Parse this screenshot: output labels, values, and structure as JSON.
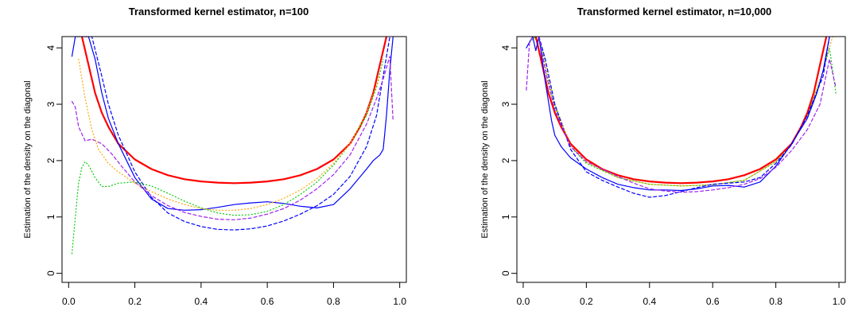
{
  "chart_data": [
    {
      "type": "line",
      "title": "Transformed kernel estimator, n=100",
      "xlabel": "",
      "ylabel": "Estimation of the density on the diagonal",
      "xlim": [
        -0.02,
        1.02
      ],
      "ylim": [
        -0.16,
        4.2
      ],
      "xticks": [
        {
          "value": 0.0,
          "label": "0.0"
        },
        {
          "value": 0.2,
          "label": "0.2"
        },
        {
          "value": 0.4,
          "label": "0.4"
        },
        {
          "value": 0.6,
          "label": "0.6"
        },
        {
          "value": 0.8,
          "label": "0.8"
        },
        {
          "value": 1.0,
          "label": "1.0"
        }
      ],
      "yticks": [
        {
          "value": 0,
          "label": "0"
        },
        {
          "value": 1,
          "label": "1"
        },
        {
          "value": 2,
          "label": "2"
        },
        {
          "value": 3,
          "label": "3"
        },
        {
          "value": 4,
          "label": "4"
        }
      ],
      "grid": false,
      "series": [
        {
          "color": "#ff0000",
          "dash": "solid",
          "width": 2.2,
          "x": [
            0.04,
            0.06,
            0.08,
            0.1,
            0.12,
            0.15,
            0.2,
            0.25,
            0.3,
            0.35,
            0.4,
            0.45,
            0.5,
            0.55,
            0.6,
            0.65,
            0.7,
            0.75,
            0.8,
            0.85,
            0.88,
            0.9,
            0.92,
            0.94,
            0.96
          ],
          "y": [
            4.2,
            3.7,
            3.2,
            2.85,
            2.6,
            2.3,
            2.02,
            1.85,
            1.74,
            1.67,
            1.63,
            1.61,
            1.6,
            1.61,
            1.63,
            1.67,
            1.74,
            1.85,
            2.02,
            2.3,
            2.6,
            2.85,
            3.2,
            3.7,
            4.2
          ]
        },
        {
          "color": "#0000ff",
          "dash": "solid",
          "width": 1.2,
          "x": [
            0.01,
            0.02,
            0.03,
            0.06,
            0.08,
            0.1,
            0.12,
            0.15,
            0.2,
            0.25,
            0.3,
            0.35,
            0.4,
            0.45,
            0.5,
            0.55,
            0.6,
            0.65,
            0.7,
            0.75,
            0.8,
            0.85,
            0.9,
            0.92,
            0.94,
            0.95,
            0.96,
            0.97,
            0.98
          ],
          "y": [
            3.85,
            4.2,
            4.2,
            4.2,
            3.8,
            3.2,
            2.75,
            2.3,
            1.7,
            1.32,
            1.15,
            1.12,
            1.13,
            1.17,
            1.22,
            1.25,
            1.27,
            1.24,
            1.19,
            1.16,
            1.22,
            1.5,
            1.85,
            2.0,
            2.1,
            2.2,
            2.8,
            3.6,
            4.2
          ]
        },
        {
          "color": "#0000ff",
          "dash": "4,3",
          "width": 1.2,
          "x": [
            0.05,
            0.07,
            0.1,
            0.12,
            0.15,
            0.2,
            0.25,
            0.3,
            0.35,
            0.4,
            0.45,
            0.5,
            0.55,
            0.6,
            0.65,
            0.7,
            0.75,
            0.8,
            0.85,
            0.9,
            0.93,
            0.95,
            0.97
          ],
          "y": [
            4.2,
            4.2,
            3.5,
            3.0,
            2.45,
            1.8,
            1.35,
            1.07,
            0.92,
            0.83,
            0.78,
            0.77,
            0.79,
            0.84,
            0.93,
            1.05,
            1.2,
            1.4,
            1.72,
            2.25,
            2.8,
            3.5,
            4.2
          ]
        },
        {
          "color": "#a020f0",
          "dash": "4,3",
          "width": 1.2,
          "x": [
            0.01,
            0.02,
            0.03,
            0.05,
            0.07,
            0.1,
            0.13,
            0.16,
            0.2,
            0.25,
            0.3,
            0.35,
            0.4,
            0.45,
            0.5,
            0.55,
            0.6,
            0.65,
            0.7,
            0.75,
            0.8,
            0.85,
            0.9,
            0.93,
            0.95,
            0.97,
            0.98
          ],
          "y": [
            3.05,
            2.95,
            2.6,
            2.35,
            2.38,
            2.3,
            2.12,
            1.9,
            1.62,
            1.38,
            1.2,
            1.08,
            1.01,
            0.96,
            0.95,
            0.98,
            1.05,
            1.15,
            1.3,
            1.5,
            1.75,
            2.1,
            2.65,
            3.1,
            3.45,
            3.85,
            2.7
          ]
        },
        {
          "color": "#00cc00",
          "dash": "1,3",
          "width": 1.2,
          "x": [
            0.01,
            0.02,
            0.03,
            0.04,
            0.05,
            0.06,
            0.08,
            0.1,
            0.12,
            0.15,
            0.2,
            0.25,
            0.3,
            0.35,
            0.4,
            0.45,
            0.5,
            0.55,
            0.6,
            0.65,
            0.7,
            0.75,
            0.8,
            0.85,
            0.9,
            0.93,
            0.95
          ],
          "y": [
            0.35,
            1.0,
            1.6,
            1.88,
            1.98,
            1.92,
            1.7,
            1.54,
            1.54,
            1.6,
            1.62,
            1.55,
            1.42,
            1.28,
            1.16,
            1.07,
            1.03,
            1.04,
            1.1,
            1.22,
            1.4,
            1.62,
            1.92,
            2.3,
            2.8,
            3.3,
            3.8
          ]
        },
        {
          "color": "#ffa500",
          "dash": "1,3",
          "width": 1.2,
          "x": [
            0.03,
            0.05,
            0.07,
            0.09,
            0.12,
            0.15,
            0.2,
            0.25,
            0.3,
            0.35,
            0.4,
            0.45,
            0.5,
            0.55,
            0.6,
            0.65,
            0.7,
            0.75,
            0.8,
            0.85,
            0.9,
            0.94
          ],
          "y": [
            3.8,
            3.1,
            2.55,
            2.2,
            1.95,
            1.8,
            1.6,
            1.45,
            1.32,
            1.22,
            1.15,
            1.12,
            1.12,
            1.15,
            1.22,
            1.33,
            1.48,
            1.68,
            1.95,
            2.3,
            2.85,
            3.5
          ]
        }
      ]
    },
    {
      "type": "line",
      "title": "Transformed kernel estimator, n=10,000",
      "xlabel": "",
      "ylabel": "Estimation of the density on the diagonal",
      "xlim": [
        -0.02,
        1.02
      ],
      "ylim": [
        -0.16,
        4.2
      ],
      "xticks": [
        {
          "value": 0.0,
          "label": "0.0"
        },
        {
          "value": 0.2,
          "label": "0.2"
        },
        {
          "value": 0.4,
          "label": "0.4"
        },
        {
          "value": 0.6,
          "label": "0.6"
        },
        {
          "value": 0.8,
          "label": "0.8"
        },
        {
          "value": 1.0,
          "label": "1.0"
        }
      ],
      "yticks": [
        {
          "value": 0,
          "label": "0"
        },
        {
          "value": 1,
          "label": "1"
        },
        {
          "value": 2,
          "label": "2"
        },
        {
          "value": 3,
          "label": "3"
        },
        {
          "value": 4,
          "label": "4"
        }
      ],
      "grid": false,
      "series": [
        {
          "color": "#00cc00",
          "dash": "1,3",
          "width": 1.2,
          "x": [
            0.02,
            0.04,
            0.06,
            0.08,
            0.1,
            0.15,
            0.2,
            0.3,
            0.4,
            0.5,
            0.6,
            0.7,
            0.8,
            0.85,
            0.9,
            0.94,
            0.97,
            0.99
          ],
          "y": [
            4.1,
            4.2,
            4.0,
            3.4,
            2.95,
            2.25,
            1.95,
            1.7,
            1.58,
            1.55,
            1.57,
            1.65,
            1.98,
            2.3,
            2.8,
            3.4,
            4.0,
            3.2
          ]
        },
        {
          "color": "#ffa500",
          "dash": "1,3",
          "width": 1.2,
          "x": [
            0.03,
            0.05,
            0.07,
            0.1,
            0.15,
            0.2,
            0.3,
            0.4,
            0.5,
            0.6,
            0.7,
            0.8,
            0.85,
            0.9,
            0.95,
            0.98
          ],
          "y": [
            4.2,
            4.1,
            3.7,
            3.0,
            2.28,
            1.97,
            1.7,
            1.58,
            1.55,
            1.57,
            1.65,
            1.98,
            2.3,
            2.8,
            3.6,
            4.2
          ]
        },
        {
          "color": "#ff0000",
          "dash": "solid",
          "width": 2.2,
          "x": [
            0.04,
            0.06,
            0.08,
            0.1,
            0.12,
            0.15,
            0.2,
            0.25,
            0.3,
            0.35,
            0.4,
            0.45,
            0.5,
            0.55,
            0.6,
            0.65,
            0.7,
            0.75,
            0.8,
            0.85,
            0.88,
            0.9,
            0.92,
            0.94,
            0.96
          ],
          "y": [
            4.2,
            3.7,
            3.2,
            2.85,
            2.6,
            2.3,
            2.02,
            1.85,
            1.74,
            1.67,
            1.63,
            1.61,
            1.6,
            1.61,
            1.63,
            1.67,
            1.74,
            1.85,
            2.02,
            2.3,
            2.6,
            2.85,
            3.2,
            3.7,
            4.2
          ]
        },
        {
          "color": "#0000ff",
          "dash": "solid",
          "width": 1.2,
          "x": [
            0.01,
            0.02,
            0.03,
            0.04,
            0.05,
            0.07,
            0.09,
            0.1,
            0.12,
            0.15,
            0.2,
            0.25,
            0.3,
            0.35,
            0.4,
            0.45,
            0.5,
            0.55,
            0.6,
            0.65,
            0.7,
            0.75,
            0.8,
            0.85,
            0.9,
            0.93,
            0.95,
            0.97
          ],
          "y": [
            4.0,
            4.1,
            4.2,
            3.95,
            4.2,
            3.4,
            2.7,
            2.45,
            2.25,
            2.05,
            1.85,
            1.7,
            1.58,
            1.52,
            1.48,
            1.48,
            1.47,
            1.5,
            1.55,
            1.56,
            1.53,
            1.62,
            1.9,
            2.3,
            2.75,
            3.2,
            3.6,
            4.2
          ]
        },
        {
          "color": "#0000ff",
          "dash": "4,3",
          "width": 1.2,
          "x": [
            0.05,
            0.07,
            0.1,
            0.15,
            0.2,
            0.25,
            0.3,
            0.35,
            0.4,
            0.45,
            0.5,
            0.55,
            0.6,
            0.65,
            0.7,
            0.75,
            0.8,
            0.85,
            0.9,
            0.95,
            0.97
          ],
          "y": [
            4.2,
            3.8,
            3.0,
            2.2,
            1.8,
            1.65,
            1.53,
            1.42,
            1.35,
            1.38,
            1.45,
            1.52,
            1.58,
            1.6,
            1.62,
            1.7,
            1.95,
            2.28,
            2.8,
            3.5,
            4.2
          ]
        },
        {
          "color": "#a020f0",
          "dash": "4,3",
          "width": 1.2,
          "x": [
            0.01,
            0.02,
            0.03,
            0.05,
            0.07,
            0.1,
            0.15,
            0.2,
            0.25,
            0.3,
            0.35,
            0.4,
            0.45,
            0.5,
            0.55,
            0.6,
            0.65,
            0.7,
            0.75,
            0.8,
            0.85,
            0.9,
            0.94,
            0.97,
            0.99
          ],
          "y": [
            3.25,
            4.1,
            4.2,
            4.2,
            3.6,
            2.9,
            2.25,
            1.98,
            1.85,
            1.72,
            1.6,
            1.5,
            1.46,
            1.44,
            1.45,
            1.48,
            1.52,
            1.58,
            1.68,
            1.88,
            2.18,
            2.55,
            3.0,
            3.8,
            3.3
          ]
        }
      ]
    }
  ]
}
